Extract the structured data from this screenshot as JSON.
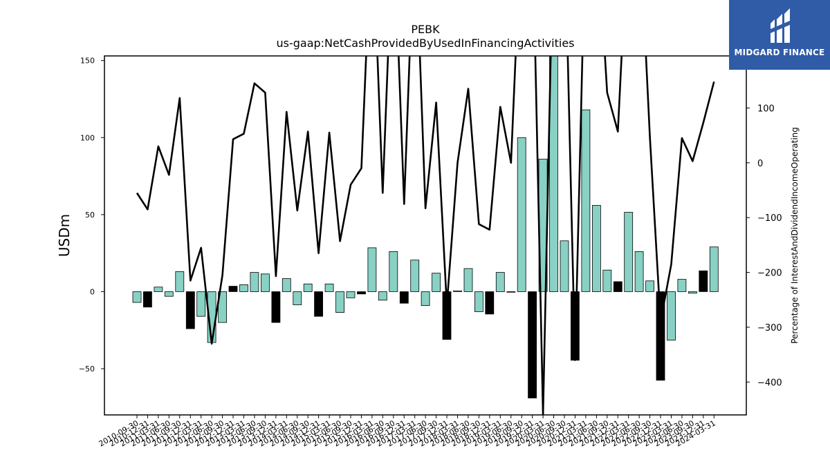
{
  "chart_data": {
    "type": "bar",
    "title": "PEBK",
    "subtitle": "us-gaap:NetCashProvidedByUsedInFinancingActivities",
    "ylabel": "USDm",
    "y2label": "Percentage of InterestAndDividendIncomeOperating",
    "ylim": [
      -80,
      153
    ],
    "y2lim": [
      -460,
      195
    ],
    "yticks": [
      -50,
      0,
      50,
      100,
      150
    ],
    "y2ticks": [
      -400,
      -300,
      -200,
      -100,
      0,
      100
    ],
    "bar_colors": {
      "positive_quarter": "#88d1c4",
      "negative_highlight": "#000000"
    },
    "line_color": "#000000",
    "categories": [
      "2010-09-30",
      "2010-12-31",
      "2011-03-31",
      "2011-06-30",
      "2011-09-30",
      "2011-12-31",
      "2012-03-31",
      "2012-06-30",
      "2012-09-30",
      "2012-12-31",
      "2013-03-31",
      "2013-06-30",
      "2013-09-30",
      "2013-12-31",
      "2014-03-31",
      "2014-06-30",
      "2014-09-30",
      "2014-12-31",
      "2015-03-31",
      "2015-06-30",
      "2015-09-30",
      "2015-12-31",
      "2016-03-31",
      "2016-06-30",
      "2016-09-30",
      "2016-12-31",
      "2017-03-31",
      "2017-06-30",
      "2017-09-30",
      "2017-12-31",
      "2018-03-31",
      "2018-06-30",
      "2018-09-30",
      "2018-12-31",
      "2019-03-31",
      "2019-06-30",
      "2019-09-30",
      "2019-12-31",
      "2020-03-31",
      "2020-06-30",
      "2020-09-30",
      "2020-12-31",
      "2021-03-31",
      "2021-06-30",
      "2021-09-30",
      "2021-12-31",
      "2022-03-31",
      "2022-06-30",
      "2022-09-30",
      "2022-12-31",
      "2023-03-31",
      "2023-06-30",
      "2023-09-30",
      "2023-12-31",
      "2024-03-31"
    ],
    "values": [
      -7,
      -10,
      3,
      -3,
      13,
      -24,
      -16,
      -33,
      -20,
      3.5,
      4.5,
      12.5,
      11.5,
      -20,
      8.5,
      -8.5,
      5,
      -16,
      5,
      -13.5,
      -4,
      -1.5,
      28.5,
      -5.5,
      26,
      -7.5,
      20.5,
      -9,
      12,
      -31,
      0.5,
      15,
      -13,
      -14.5,
      12.5,
      0,
      100,
      -69,
      86,
      153,
      33,
      -44.5,
      118,
      56,
      14,
      6.5,
      51.5,
      26,
      7,
      -57.5,
      -31.5,
      8,
      -1,
      13.5,
      29
    ],
    "highlight": [
      false,
      true,
      false,
      false,
      false,
      true,
      false,
      false,
      false,
      true,
      false,
      false,
      false,
      true,
      false,
      false,
      false,
      true,
      false,
      false,
      false,
      true,
      false,
      false,
      false,
      true,
      false,
      false,
      false,
      true,
      false,
      false,
      false,
      true,
      false,
      false,
      false,
      true,
      false,
      false,
      false,
      true,
      false,
      false,
      false,
      true,
      false,
      false,
      false,
      true,
      false,
      false,
      false,
      true,
      false
    ],
    "line_values": [
      -55,
      -85,
      30,
      -22,
      118,
      -215,
      -155,
      -330,
      -205,
      43,
      53,
      145,
      128,
      -207,
      93,
      -87,
      57,
      -165,
      55,
      -143,
      -40,
      -10,
      450,
      -55,
      450,
      -75,
      450,
      -83,
      110,
      -260,
      0,
      135,
      -112,
      -122,
      102,
      0,
      450,
      450,
      -460,
      450,
      450,
      -360,
      450,
      450,
      128,
      57,
      450,
      450,
      47,
      -290,
      -185,
      45,
      3,
      73,
      148
    ]
  },
  "brand": {
    "name": "MIDGARD FINANCE",
    "background": "#2f5ba7",
    "icon": "midgard-logo-icon"
  }
}
